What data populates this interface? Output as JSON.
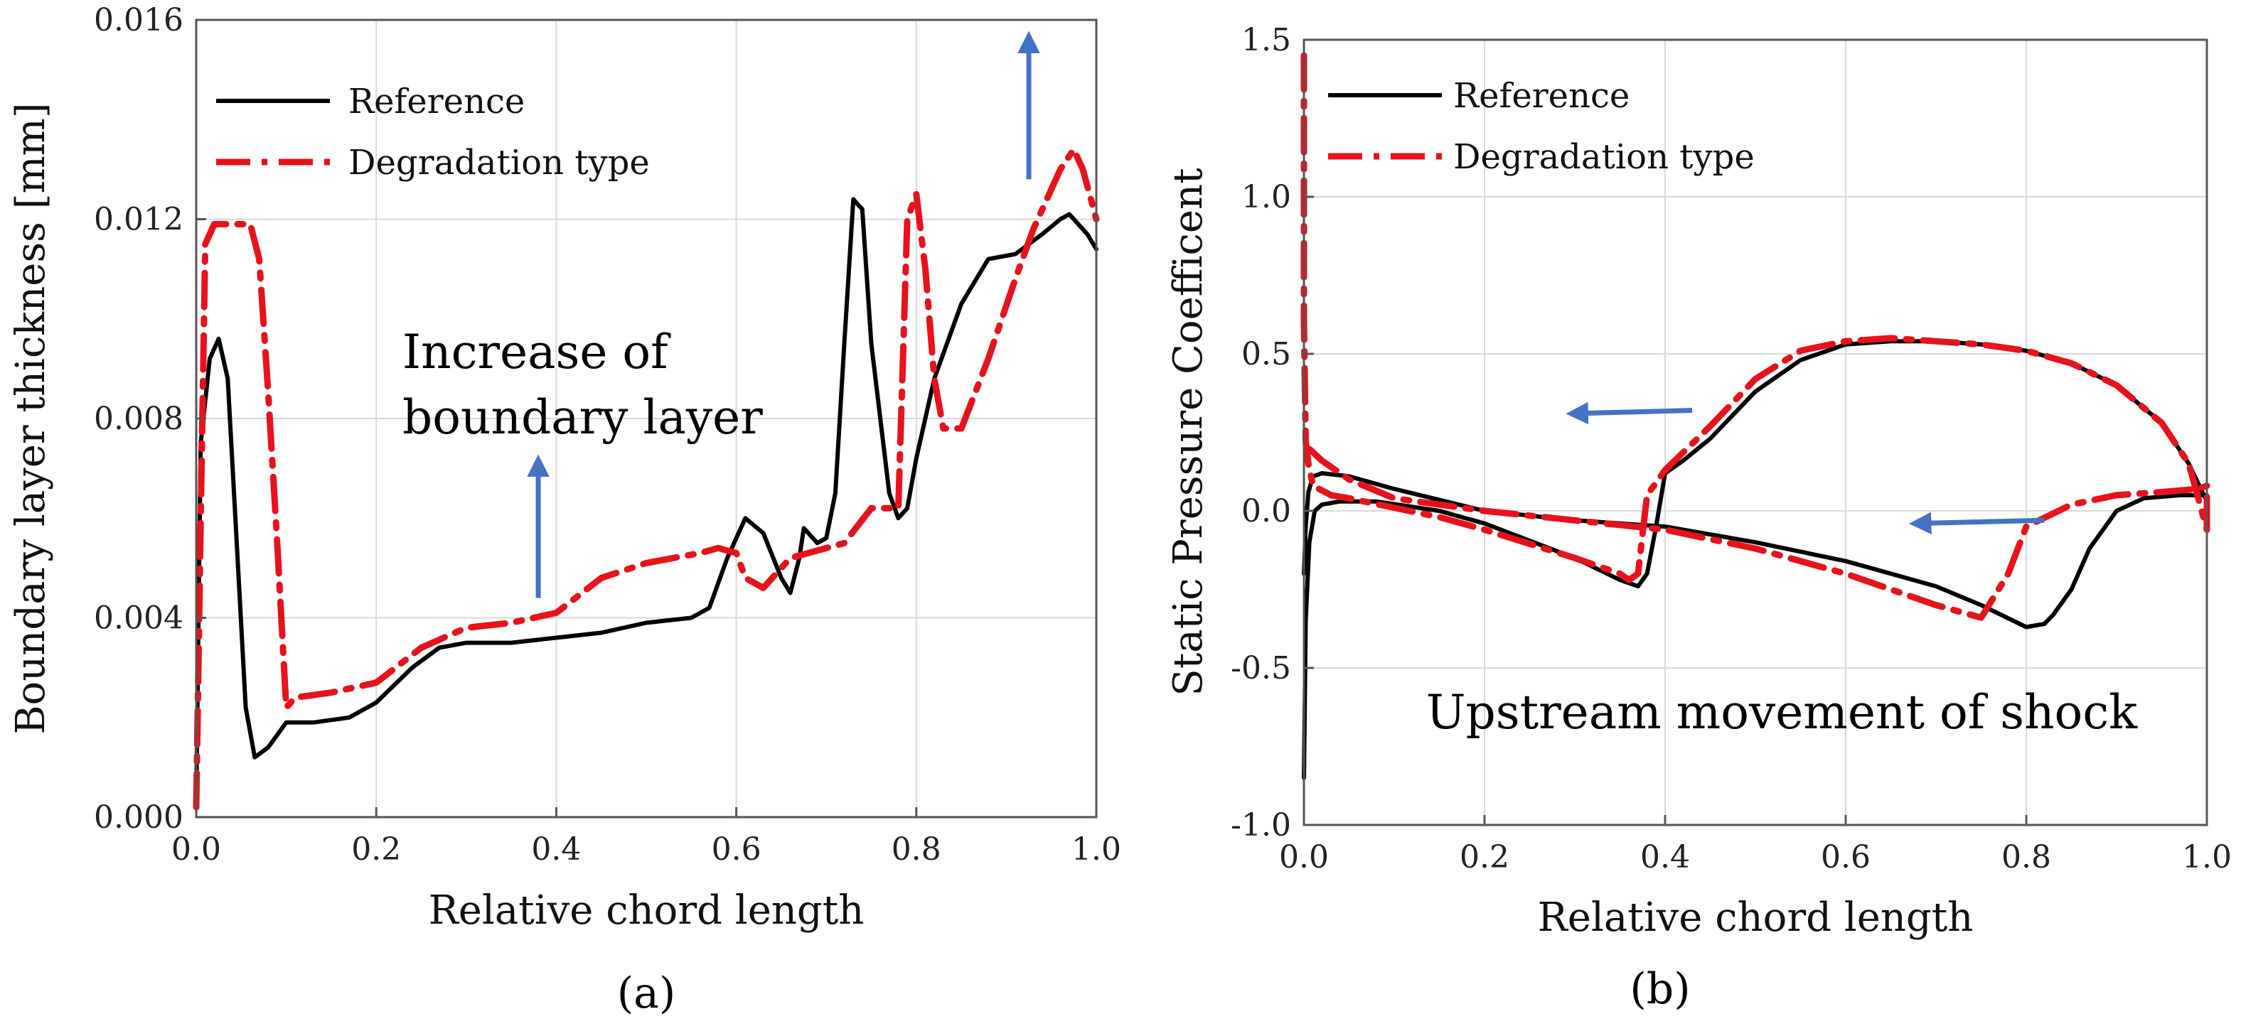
{
  "chart_data": [
    {
      "panel": "a",
      "type": "line",
      "caption": "(a)",
      "title": "",
      "xlabel": "Relative chord length",
      "ylabel": "Boundary layer thickness [mm]",
      "xlim": [
        0.0,
        1.0
      ],
      "ylim": [
        0.0,
        0.016
      ],
      "xticks": [
        "0.0",
        "0.2",
        "0.4",
        "0.6",
        "0.8",
        "1.0"
      ],
      "yticks": [
        "0.000",
        "0.004",
        "0.008",
        "0.012",
        "0.016"
      ],
      "grid": true,
      "legend": {
        "placement": "top-left",
        "entries": [
          "Reference",
          "Degradation type"
        ]
      },
      "annotation": {
        "lines": [
          "Increase of",
          "boundary layer"
        ]
      },
      "arrows": [
        {
          "x_from": 0.38,
          "y_from": 0.0044,
          "x_to": 0.38,
          "y_to": 0.0071,
          "direction": "up"
        },
        {
          "x_from": 0.925,
          "y_from": 0.0128,
          "x_to": 0.925,
          "y_to": 0.0156,
          "direction": "up"
        }
      ],
      "series": [
        {
          "name": "Reference",
          "color": "#000000",
          "style": "solid",
          "x": [
            0.0,
            0.005,
            0.015,
            0.025,
            0.035,
            0.045,
            0.055,
            0.065,
            0.08,
            0.1,
            0.13,
            0.17,
            0.2,
            0.24,
            0.27,
            0.3,
            0.35,
            0.4,
            0.45,
            0.5,
            0.55,
            0.57,
            0.59,
            0.61,
            0.63,
            0.65,
            0.66,
            0.67,
            0.675,
            0.69,
            0.7,
            0.71,
            0.72,
            0.73,
            0.74,
            0.75,
            0.77,
            0.78,
            0.79,
            0.8,
            0.82,
            0.85,
            0.88,
            0.91,
            0.94,
            0.96,
            0.97,
            0.99,
            1.0
          ],
          "y": [
            0.0003,
            0.0075,
            0.0092,
            0.0096,
            0.0088,
            0.0055,
            0.0022,
            0.0012,
            0.0014,
            0.0019,
            0.0019,
            0.002,
            0.0023,
            0.003,
            0.0034,
            0.0035,
            0.0035,
            0.0036,
            0.0037,
            0.0039,
            0.004,
            0.0042,
            0.0052,
            0.006,
            0.0057,
            0.0048,
            0.0045,
            0.0052,
            0.0058,
            0.0055,
            0.0056,
            0.0065,
            0.0095,
            0.0124,
            0.0122,
            0.0095,
            0.0065,
            0.006,
            0.0062,
            0.0072,
            0.0088,
            0.0103,
            0.0112,
            0.0113,
            0.0117,
            0.012,
            0.0121,
            0.0117,
            0.0114
          ]
        },
        {
          "name": "Degradation type",
          "color": "#e8121b",
          "style": "dashdot",
          "x": [
            0.0,
            0.005,
            0.01,
            0.02,
            0.04,
            0.06,
            0.07,
            0.08,
            0.09,
            0.1,
            0.11,
            0.15,
            0.2,
            0.25,
            0.3,
            0.35,
            0.4,
            0.45,
            0.5,
            0.56,
            0.58,
            0.6,
            0.61,
            0.63,
            0.66,
            0.7,
            0.72,
            0.75,
            0.77,
            0.78,
            0.79,
            0.8,
            0.81,
            0.82,
            0.83,
            0.85,
            0.88,
            0.91,
            0.93,
            0.96,
            0.975,
            0.985,
            1.0
          ],
          "y": [
            0.0002,
            0.006,
            0.0115,
            0.0119,
            0.0119,
            0.0119,
            0.0112,
            0.0085,
            0.0055,
            0.0022,
            0.0024,
            0.0025,
            0.0027,
            0.0034,
            0.0038,
            0.0039,
            0.0041,
            0.0048,
            0.0051,
            0.0053,
            0.0054,
            0.0053,
            0.0048,
            0.0046,
            0.0052,
            0.0054,
            0.0055,
            0.0062,
            0.0062,
            0.0062,
            0.012,
            0.0125,
            0.011,
            0.0088,
            0.0078,
            0.0078,
            0.0092,
            0.0108,
            0.0118,
            0.013,
            0.0134,
            0.013,
            0.012
          ]
        }
      ]
    },
    {
      "panel": "b",
      "type": "line",
      "caption": "(b)",
      "title": "",
      "xlabel": "Relative chord length",
      "ylabel": "Static Pressure Coefficent",
      "xlim": [
        0.0,
        1.0
      ],
      "ylim": [
        -1.0,
        1.5
      ],
      "xticks": [
        "0.0",
        "0.2",
        "0.4",
        "0.6",
        "0.8",
        "1.0"
      ],
      "yticks": [
        "-1.0",
        "-0.5",
        "0.0",
        "0.5",
        "1.0",
        "1.5"
      ],
      "grid": true,
      "legend": {
        "placement": "top-left",
        "entries": [
          "Reference",
          "Degradation type"
        ]
      },
      "annotation": {
        "lines": [
          "Upstream movement of shock"
        ]
      },
      "arrows": [
        {
          "x_from": 0.43,
          "y_from": 0.32,
          "x_to": 0.3,
          "y_to": 0.31,
          "direction": "left"
        },
        {
          "x_from": 0.82,
          "y_from": -0.03,
          "x_to": 0.68,
          "y_to": -0.04,
          "direction": "left"
        }
      ],
      "series": [
        {
          "name": "Reference",
          "color": "#000000",
          "style": "solid",
          "x": [
            0.0,
            0.002,
            0.006,
            0.012,
            0.02,
            0.04,
            0.08,
            0.15,
            0.2,
            0.3,
            0.35,
            0.37,
            0.38,
            0.39,
            0.4,
            0.42,
            0.45,
            0.5,
            0.55,
            0.6,
            0.65,
            0.7,
            0.75,
            0.8,
            0.85,
            0.9,
            0.95,
            0.98,
            0.995,
            1.0,
            1.0,
            0.995,
            0.99,
            0.97,
            0.93,
            0.9,
            0.87,
            0.85,
            0.83,
            0.82,
            0.8,
            0.75,
            0.7,
            0.6,
            0.5,
            0.4,
            0.3,
            0.2,
            0.1,
            0.05,
            0.02,
            0.01,
            0.005,
            0.002,
            0.0
          ],
          "y": [
            -0.85,
            -0.35,
            -0.1,
            0.0,
            0.02,
            0.03,
            0.03,
            0.0,
            -0.04,
            -0.15,
            -0.22,
            -0.24,
            -0.2,
            -0.05,
            0.12,
            0.16,
            0.23,
            0.38,
            0.48,
            0.53,
            0.54,
            0.54,
            0.53,
            0.51,
            0.47,
            0.4,
            0.28,
            0.15,
            0.06,
            0.03,
            0.05,
            0.05,
            0.05,
            0.05,
            0.04,
            0.0,
            -0.12,
            -0.25,
            -0.33,
            -0.36,
            -0.37,
            -0.3,
            -0.24,
            -0.16,
            -0.1,
            -0.05,
            -0.03,
            0.0,
            0.07,
            0.11,
            0.12,
            0.11,
            0.06,
            -0.05,
            -0.2
          ]
        },
        {
          "name": "Degradation type",
          "color": "#e8121b",
          "style": "dashdot",
          "x": [
            0.0,
            0.0,
            0.002,
            0.005,
            0.01,
            0.03,
            0.05,
            0.1,
            0.15,
            0.2,
            0.3,
            0.35,
            0.36,
            0.37,
            0.38,
            0.4,
            0.45,
            0.5,
            0.55,
            0.6,
            0.65,
            0.7,
            0.75,
            0.8,
            0.85,
            0.9,
            0.95,
            0.98,
            1.0,
            1.0,
            0.99,
            0.95,
            0.9,
            0.85,
            0.8,
            0.78,
            0.75,
            0.7,
            0.6,
            0.5,
            0.4,
            0.3,
            0.2,
            0.1,
            0.05,
            0.02,
            0.005,
            0.0
          ],
          "y": [
            1.45,
            0.6,
            0.22,
            0.15,
            0.08,
            0.05,
            0.04,
            0.01,
            -0.02,
            -0.06,
            -0.15,
            -0.2,
            -0.22,
            -0.2,
            0.05,
            0.13,
            0.27,
            0.42,
            0.51,
            0.54,
            0.55,
            0.54,
            0.53,
            0.51,
            0.47,
            0.4,
            0.28,
            0.15,
            -0.06,
            0.08,
            0.07,
            0.06,
            0.05,
            0.02,
            -0.05,
            -0.2,
            -0.34,
            -0.3,
            -0.2,
            -0.12,
            -0.06,
            -0.03,
            0.0,
            0.04,
            0.1,
            0.16,
            0.2,
            0.22
          ]
        }
      ]
    }
  ]
}
